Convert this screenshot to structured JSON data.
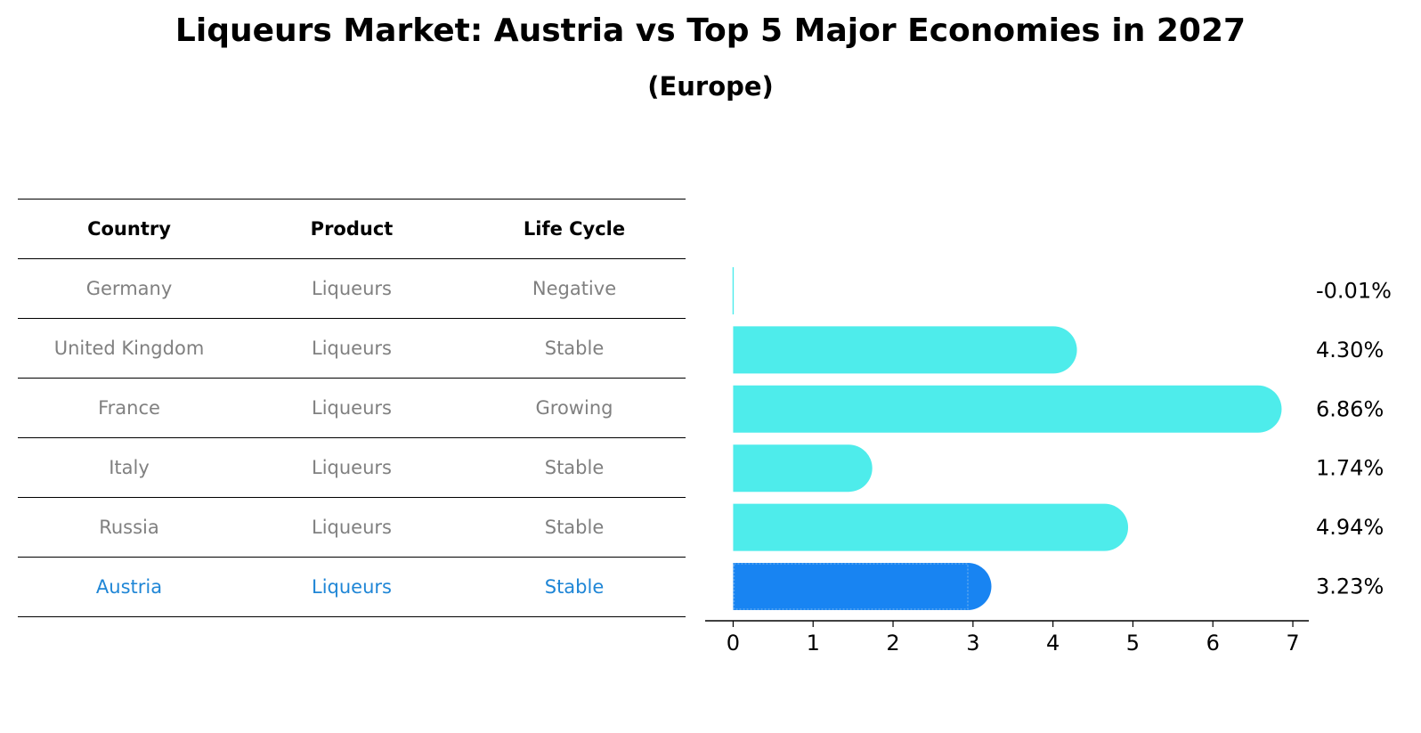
{
  "title": "Liqueurs Market: Austria vs Top 5 Major Economies in 2027",
  "subtitle": "(Europe)",
  "table": {
    "headers": [
      "Country",
      "Product",
      "Life Cycle"
    ],
    "rows": [
      [
        "Germany",
        "Liqueurs",
        "Negative"
      ],
      [
        "United Kingdom",
        "Liqueurs",
        "Stable"
      ],
      [
        "France",
        "Liqueurs",
        "Growing"
      ],
      [
        "Italy",
        "Liqueurs",
        "Stable"
      ],
      [
        "Russia",
        "Liqueurs",
        "Stable"
      ],
      [
        "Austria",
        "Liqueurs",
        "Stable"
      ]
    ],
    "highlight_row": 5
  },
  "colors": {
    "bar": "#4eeceb",
    "highlight_bar": "#1884f2",
    "highlight_text": "#1f86d6",
    "muted_text": "#808080"
  },
  "chart_data": {
    "type": "bar",
    "orientation": "horizontal",
    "categories": [
      "Germany",
      "United Kingdom",
      "France",
      "Italy",
      "Russia",
      "Austria"
    ],
    "values": [
      -0.01,
      4.3,
      6.86,
      1.74,
      4.94,
      3.23
    ],
    "value_labels": [
      "-0.01%",
      "4.30%",
      "6.86%",
      "1.74%",
      "4.94%",
      "3.23%"
    ],
    "highlight_index": 5,
    "xlim": [
      -0.35,
      7.2
    ],
    "xticks": [
      0,
      1,
      2,
      3,
      4,
      5,
      6,
      7
    ],
    "xlabel": "",
    "ylabel": "",
    "grid": false
  }
}
